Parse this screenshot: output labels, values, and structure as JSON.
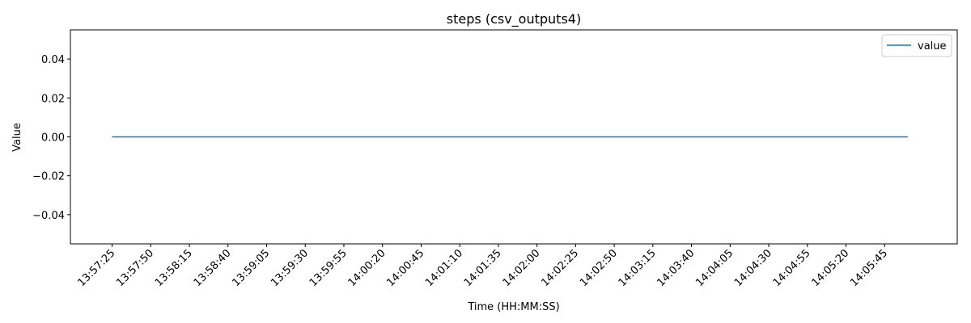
{
  "chart_data": {
    "type": "line",
    "title": "steps (csv_outputs4)",
    "xlabel": "Time (HH:MM:SS)",
    "ylabel": "Value",
    "x_ticks": [
      "13:57:25",
      "13:57:50",
      "13:58:15",
      "13:58:40",
      "13:59:05",
      "13:59:30",
      "13:59:55",
      "14:00:20",
      "14:00:45",
      "14:01:10",
      "14:01:35",
      "14:02:00",
      "14:02:25",
      "14:02:50",
      "14:03:15",
      "14:03:40",
      "14:04:05",
      "14:04:30",
      "14:04:55",
      "14:05:20",
      "14:05:45"
    ],
    "xlim": [
      "13:56:58",
      "14:06:32"
    ],
    "y_ticks": [
      "0.04",
      "0.02",
      "0.00",
      "−0.02",
      "−0.04"
    ],
    "y_tick_values": [
      0.04,
      0.02,
      0.0,
      -0.02,
      -0.04
    ],
    "ylim": [
      -0.055,
      0.055
    ],
    "series": [
      {
        "name": "value",
        "color": "#1f77b4",
        "x": [
          "13:57:25",
          "14:06:00"
        ],
        "y": [
          0,
          0
        ]
      }
    ],
    "legend": "top-right",
    "grid": false
  }
}
